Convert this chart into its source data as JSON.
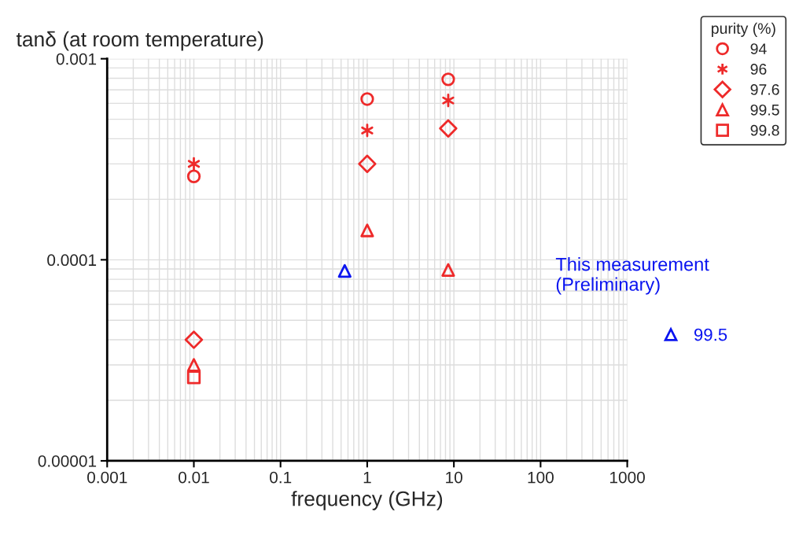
{
  "chart_data": {
    "type": "scatter",
    "ylabel": "tanδ (at room temperature)",
    "xlabel": "frequency (GHz)",
    "legend_title": "purity (%)",
    "log": "xy",
    "grid": true,
    "legend": "top right",
    "xlim": [
      0.001,
      1000
    ],
    "xticks": [
      {
        "value": 0.001,
        "label": "0.001"
      },
      {
        "value": 0.01,
        "label": "0.01"
      },
      {
        "value": 0.1,
        "label": "0.1"
      },
      {
        "value": 1,
        "label": "1"
      },
      {
        "value": 10,
        "label": "10"
      },
      {
        "value": 100,
        "label": "100"
      },
      {
        "value": 1000,
        "label": "1000"
      }
    ],
    "ylim": [
      1e-05,
      0.001
    ],
    "yticks": [
      {
        "value": 1e-05,
        "label": "0.00001"
      },
      {
        "value": 0.0001,
        "label": "0.0001"
      },
      {
        "value": 0.001,
        "label": "0.001"
      }
    ],
    "annotations": [
      "This measurement\n(Preliminary)"
    ],
    "series": [
      {
        "name": "94",
        "color": "#ee2a2a",
        "marker": "circle",
        "x": [
          0.01,
          1,
          8.6
        ],
        "values": [
          0.00026,
          0.00063,
          0.00079
        ]
      },
      {
        "name": "96",
        "color": "#ee2a2a",
        "marker": "cross",
        "x": [
          0.01,
          1,
          8.6
        ],
        "values": [
          0.0003,
          0.00044,
          0.00062
        ]
      },
      {
        "name": "97.6",
        "color": "#ee2a2a",
        "marker": "diamond",
        "x": [
          0.01,
          1,
          8.6
        ],
        "values": [
          4e-05,
          0.0003,
          0.00045
        ]
      },
      {
        "name": "99.5",
        "color": "#ee2a2a",
        "marker": "triangle",
        "x": [
          0.01,
          1,
          8.6
        ],
        "values": [
          3e-05,
          0.00014,
          8.9e-05
        ]
      },
      {
        "name": "99.8",
        "color": "#ee2a2a",
        "marker": "square",
        "x": [
          0.01
        ],
        "values": [
          2.6e-05
        ]
      },
      {
        "name": "99.5",
        "color": "#0a14f0",
        "marker": "triangle",
        "x": [
          0.55
        ],
        "values": [
          8.8e-05
        ]
      }
    ]
  }
}
